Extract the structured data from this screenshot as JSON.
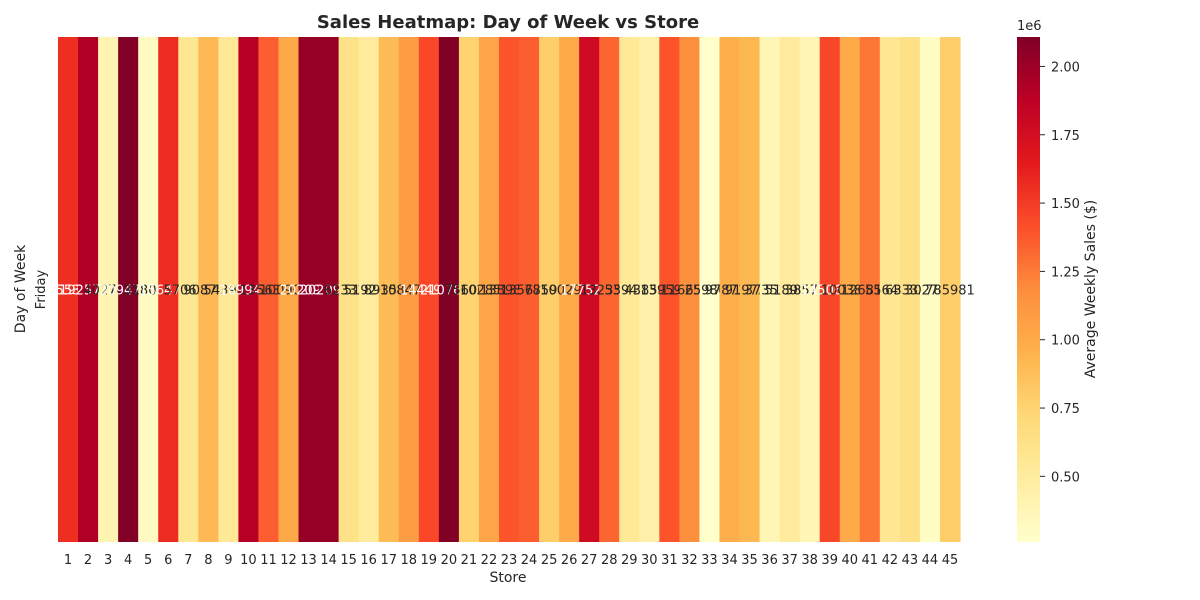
{
  "chart_data": {
    "type": "heatmap",
    "title": "Sales Heatmap: Day of Week vs Store",
    "xlabel": "Store",
    "ylabel": "Day of Week",
    "rows": [
      "Friday"
    ],
    "columns": [
      "1",
      "2",
      "3",
      "4",
      "5",
      "6",
      "7",
      "8",
      "9",
      "10",
      "11",
      "12",
      "13",
      "14",
      "15",
      "16",
      "17",
      "18",
      "19",
      "20",
      "21",
      "22",
      "23",
      "24",
      "25",
      "26",
      "27",
      "28",
      "29",
      "30",
      "31",
      "32",
      "33",
      "34",
      "35",
      "36",
      "37",
      "38",
      "39",
      "40",
      "41",
      "42",
      "43",
      "44",
      "45"
    ],
    "values": [
      [
        1555353,
        1925751,
        402704,
        2094713,
        318011,
        1564728,
        570617,
        908750,
        543981,
        1899425,
        1356383,
        1009002,
        2020978,
        2020978,
        623312,
        519248,
        893581,
        1084719,
        1444999,
        2107677,
        756069,
        1028501,
        1389864,
        1356755,
        785981,
        1002912,
        1775216,
        1323522,
        539451,
        438582,
        1395902,
        1166568,
        259862,
        978735,
        919725,
        373512,
        518900,
        385731,
        1450668,
        1003864,
        1268125,
        556404,
        633325,
        302749,
        785981
      ]
    ],
    "cell_labels": [
      "1555353",
      "1925751",
      "402704",
      "2094713",
      "318011",
      "1564728",
      "570617",
      "908750",
      "543981",
      "1899425",
      "1356383",
      "1009002",
      "2020978",
      "2020978",
      "623312",
      "519248",
      "893581",
      "1084719",
      "1444999",
      "2107677",
      "756069",
      "1028501",
      "1389864",
      "1356755",
      "785981",
      "1002912",
      "1775216",
      "1323522",
      "539451",
      "438582",
      "1395902",
      "1166568",
      "259862",
      "978735",
      "919725",
      "373512",
      "518900",
      "385731",
      "1450668",
      "1003864",
      "1268125",
      "556404",
      "633325",
      "302749",
      "785981"
    ],
    "colormap": "YlOrRd",
    "colorbar": {
      "label": "Average Weekly Sales ($)",
      "offset_label": "1e6",
      "min": 259862,
      "max": 2107677,
      "ticks": [
        0.5,
        0.75,
        1.0,
        1.25,
        1.5,
        1.75,
        2.0
      ],
      "tick_labels": [
        "0.50",
        "0.75",
        "1.00",
        "1.25",
        "1.50",
        "1.75",
        "2.00"
      ]
    },
    "grid": false
  }
}
